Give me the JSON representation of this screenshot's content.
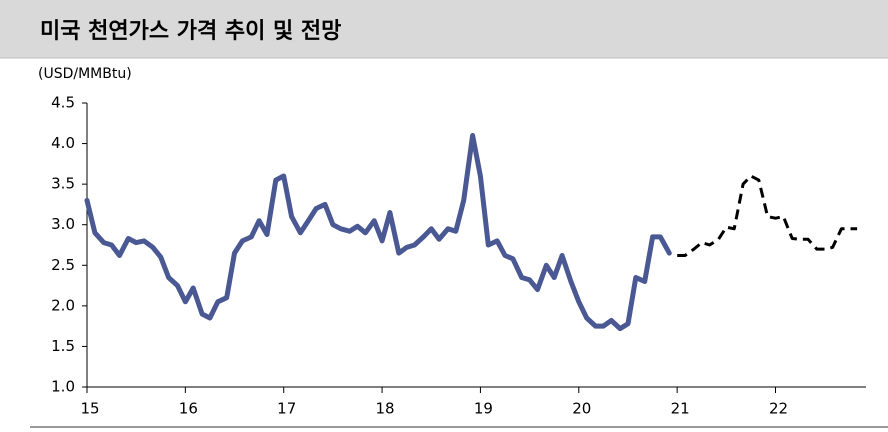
{
  "chart_data": {
    "type": "line",
    "title": "미국 천연가스 가격 추이 및 전망",
    "y_axis_label": "(USD/MMBtu)",
    "xlim": [
      15,
      22.92
    ],
    "xticks": [
      15,
      16,
      17,
      18,
      19,
      20,
      21,
      22
    ],
    "ylim": [
      1,
      4.5
    ],
    "yticks": [
      {
        "value": 1,
        "label": "1.0"
      },
      1.5,
      {
        "value": 2,
        "label": "2.0"
      },
      2.5,
      {
        "value": 3,
        "label": "3.0"
      },
      3.5,
      {
        "value": 4,
        "label": "4.0"
      },
      4.5
    ],
    "grid": false,
    "x": [
      15.0,
      15.08,
      15.17,
      15.25,
      15.33,
      15.42,
      15.5,
      15.58,
      15.67,
      15.75,
      15.83,
      15.92,
      16.0,
      16.08,
      16.17,
      16.25,
      16.33,
      16.42,
      16.5,
      16.58,
      16.67,
      16.75,
      16.83,
      16.92,
      17.0,
      17.08,
      17.17,
      17.25,
      17.33,
      17.42,
      17.5,
      17.58,
      17.67,
      17.75,
      17.83,
      17.92,
      18.0,
      18.08,
      18.17,
      18.25,
      18.33,
      18.42,
      18.5,
      18.58,
      18.67,
      18.75,
      18.83,
      18.92,
      19.0,
      19.08,
      19.17,
      19.25,
      19.33,
      19.42,
      19.5,
      19.58,
      19.67,
      19.75,
      19.83,
      19.92,
      20.0,
      20.08,
      20.17,
      20.25,
      20.33,
      20.42,
      20.5,
      20.58,
      20.67,
      20.75,
      20.83,
      20.92,
      21.0,
      21.08,
      21.17,
      21.25,
      21.33,
      21.42,
      21.5,
      21.58,
      21.67,
      21.75,
      21.83,
      21.92,
      22.0,
      22.08,
      22.17,
      22.25,
      22.33,
      22.42,
      22.5,
      22.58,
      22.67,
      22.75,
      22.83
    ],
    "series": [
      {
        "color": "#4a5893",
        "dash": false,
        "values": [
          3.3,
          2.9,
          2.78,
          2.75,
          2.62,
          2.83,
          2.78,
          2.8,
          2.72,
          2.6,
          2.35,
          2.25,
          2.05,
          2.22,
          1.9,
          1.85,
          2.05,
          2.1,
          2.65,
          2.8,
          2.85,
          3.05,
          2.88,
          3.55,
          3.6,
          3.1,
          2.9,
          3.05,
          3.2,
          3.25,
          3.0,
          2.95,
          2.92,
          2.98,
          2.9,
          3.05,
          2.8,
          3.15,
          2.65,
          2.72,
          2.75,
          2.85,
          2.95,
          2.82,
          2.95,
          2.92,
          3.3,
          4.1,
          3.6,
          2.75,
          2.8,
          2.62,
          2.58,
          2.35,
          2.32,
          2.2,
          2.5,
          2.35,
          2.62,
          2.3,
          2.05,
          1.85,
          1.75,
          1.75,
          1.82,
          1.72,
          1.78,
          2.35,
          2.3,
          2.85,
          2.85,
          2.65,
          null,
          null,
          null,
          null,
          null,
          null,
          null,
          null,
          null,
          null,
          null,
          null,
          null,
          null,
          null,
          null,
          null,
          null,
          null,
          null,
          null,
          null,
          null
        ]
      },
      {
        "color": "#000000",
        "dash": true,
        "values": [
          null,
          null,
          null,
          null,
          null,
          null,
          null,
          null,
          null,
          null,
          null,
          null,
          null,
          null,
          null,
          null,
          null,
          null,
          null,
          null,
          null,
          null,
          null,
          null,
          null,
          null,
          null,
          null,
          null,
          null,
          null,
          null,
          null,
          null,
          null,
          null,
          null,
          null,
          null,
          null,
          null,
          null,
          null,
          null,
          null,
          null,
          null,
          null,
          null,
          null,
          null,
          null,
          null,
          null,
          null,
          null,
          null,
          null,
          null,
          null,
          null,
          null,
          null,
          null,
          null,
          null,
          null,
          null,
          null,
          null,
          null,
          null,
          2.62,
          2.62,
          2.7,
          2.78,
          2.75,
          2.82,
          2.97,
          2.95,
          3.5,
          3.6,
          3.55,
          3.1,
          3.08,
          3.1,
          2.83,
          2.82,
          2.82,
          2.7,
          2.7,
          2.72,
          2.95,
          2.95,
          2.95
        ]
      }
    ]
  }
}
